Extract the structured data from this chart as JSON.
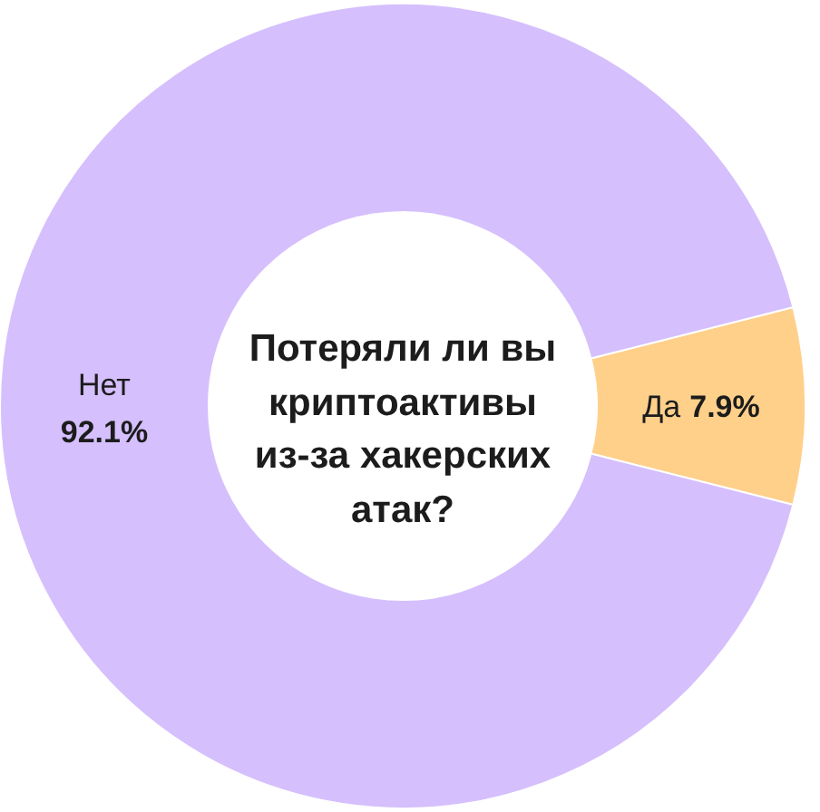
{
  "chart_data": {
    "type": "donut",
    "title": "Потеряли ли вы криптоактивы из-за хакерских атак?",
    "categories": [
      "Да",
      "Нет"
    ],
    "values": [
      7.9,
      92.1
    ],
    "colors": [
      "#ffd08a",
      "#d5bffd"
    ],
    "value_labels": [
      "7.9%",
      "92.1%"
    ]
  }
}
